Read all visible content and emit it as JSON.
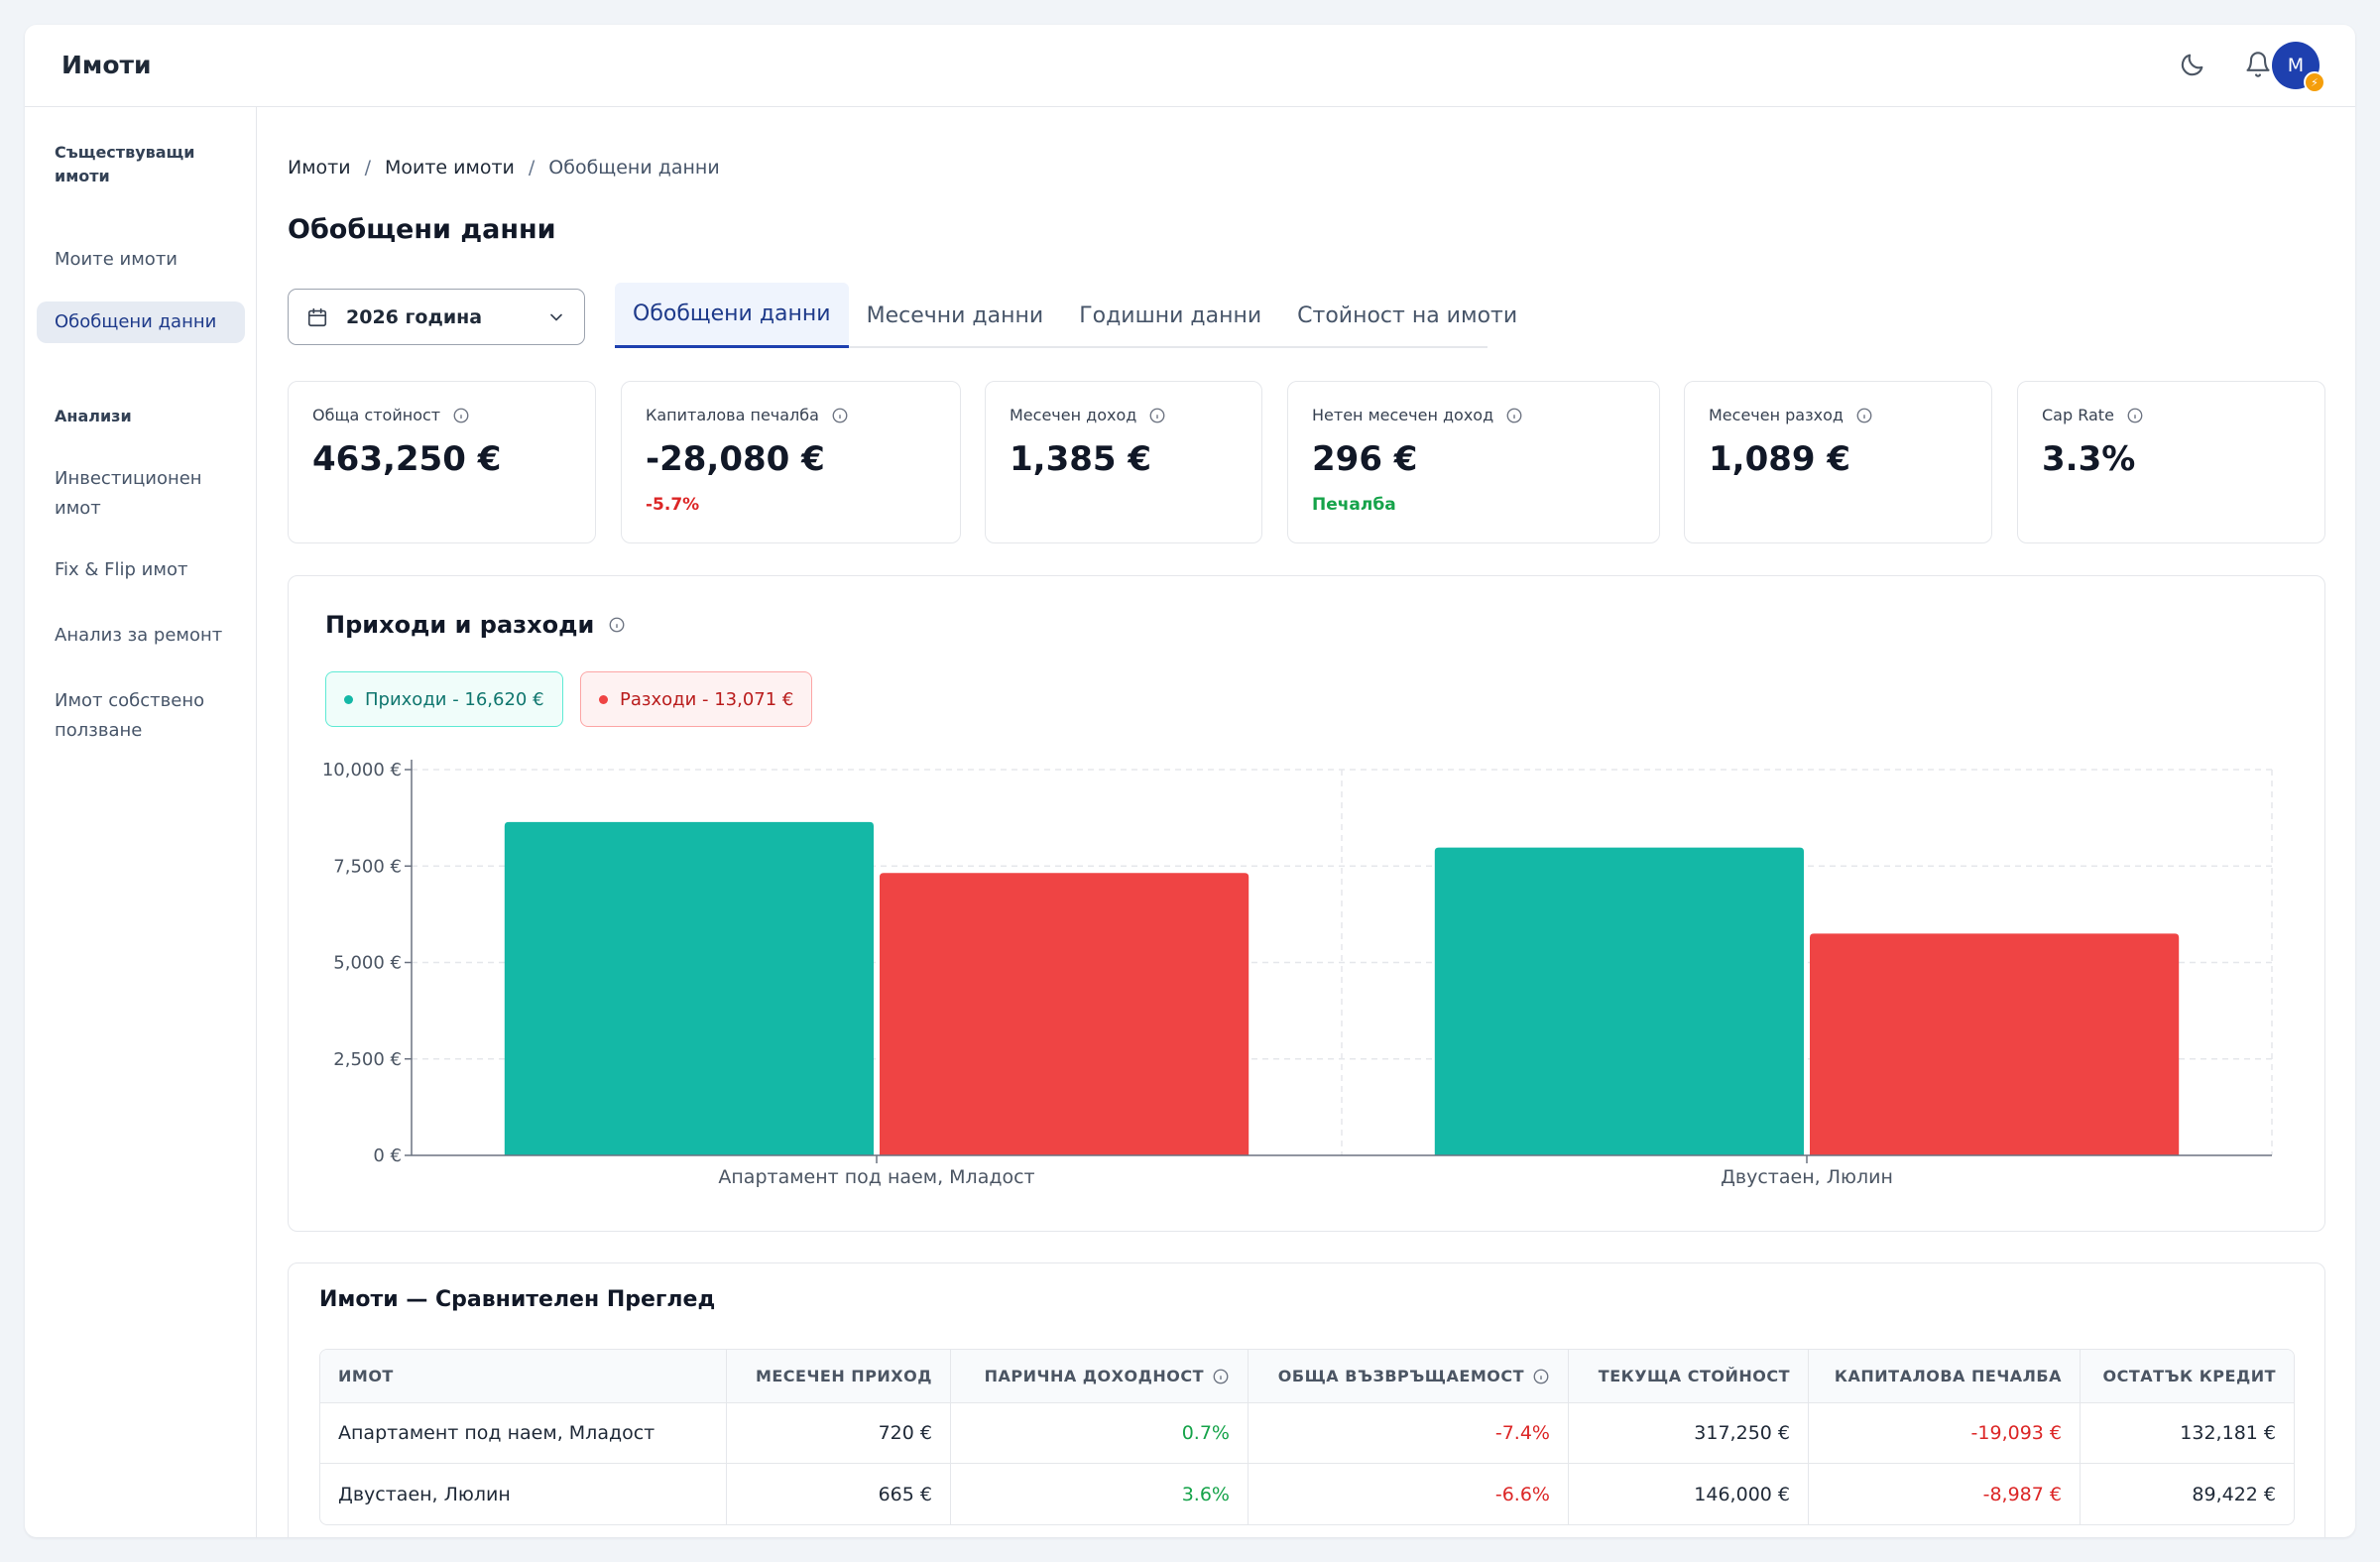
{
  "app": {
    "title": "Имоти",
    "avatar_initial": "M",
    "avatar_badge": "⚡"
  },
  "sidebar": {
    "section_existing": "Съществуващи имоти",
    "items_existing": [
      "Моите имоти",
      "Обобщени данни"
    ],
    "section_analysis": "Анализи",
    "items_analysis": [
      "Инвестиционен имот",
      "Fix & Flip имот",
      "Анализ за ремонт",
      "Имот собствено ползване"
    ]
  },
  "breadcrumb": [
    "Имоти",
    "Моите имоти",
    "Обобщени данни"
  ],
  "page_title": "Обобщени данни",
  "year_select": {
    "value": "2026 година"
  },
  "tabs": [
    "Обобщени данни",
    "Месечни данни",
    "Годишни данни",
    "Стойност на имоти"
  ],
  "kpis": [
    {
      "label": "Обща стойност",
      "value": "463,250 €",
      "sub": ""
    },
    {
      "label": "Капиталова печалба",
      "value": "-28,080 €",
      "sub": "-5.7%"
    },
    {
      "label": "Месечен доход",
      "value": "1,385 €",
      "sub": ""
    },
    {
      "label": "Нетен месечен доход",
      "value": "296 €",
      "sub": "Печалба"
    },
    {
      "label": "Месечен разход",
      "value": "1,089 €",
      "sub": ""
    },
    {
      "label": "Cap Rate",
      "value": "3.3%",
      "sub": ""
    }
  ],
  "colors": {
    "income": "#14b8a6",
    "expense": "#ef4444",
    "accent": "#1e40af"
  },
  "chart": {
    "title": "Приходи и разходи",
    "legend_income": "Приходи - 16,620 €",
    "legend_expense": "Разходи - 13,071 €"
  },
  "chart_data": {
    "type": "bar",
    "categories": [
      "Апартамент под наем, Младост",
      "Двустаен, Люлин"
    ],
    "series": [
      {
        "name": "Приходи",
        "values": [
          8640,
          7980
        ]
      },
      {
        "name": "Разходи",
        "values": [
          7320,
          5750
        ]
      }
    ],
    "yticks": [
      "0 €",
      "2,500 €",
      "5,000 €",
      "7,500 €",
      "10,000 €"
    ],
    "ylim": [
      0,
      10000
    ],
    "grid": true
  },
  "table": {
    "title": "Имоти — Сравнителен Преглед",
    "headers": [
      "Имот",
      "Месечен приход",
      "Парична доходност",
      "Обща възвръщаемост",
      "Текуща стойност",
      "Капиталова печалба",
      "Остатък кредит"
    ],
    "rows": [
      [
        "Апартамент под наем, Младост",
        "720 €",
        "0.7%",
        "-7.4%",
        "317,250 €",
        "-19,093 €",
        "132,181 €"
      ],
      [
        "Двустаен, Люлин",
        "665 €",
        "3.6%",
        "-6.6%",
        "146,000 €",
        "-8,987 €",
        "89,422 €"
      ]
    ]
  }
}
